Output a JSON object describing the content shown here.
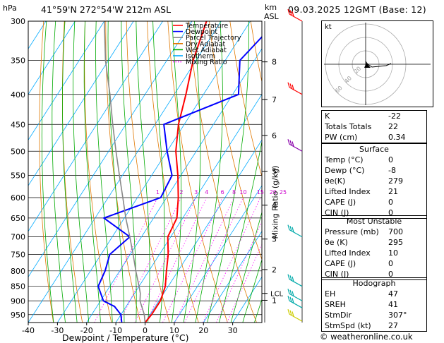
{
  "header": {
    "hpa_label": "hPa",
    "location": "41°59'N  272°54'W  212m  ASL",
    "km_label": "km",
    "asl_label": "ASL",
    "datetime": "09.03.2025  12GMT  (Base: 12)"
  },
  "legend": {
    "items": [
      {
        "label": "Temperature",
        "color": "#ff0000",
        "style": "solid"
      },
      {
        "label": "Dewpoint",
        "color": "#0000ff",
        "style": "solid"
      },
      {
        "label": "Parcel Trajectory",
        "color": "#888888",
        "style": "solid"
      },
      {
        "label": "Dry Adiabat",
        "color": "#e07800",
        "style": "solid"
      },
      {
        "label": "Wet Adiabat",
        "color": "#00aa00",
        "style": "solid"
      },
      {
        "label": "Isotherm",
        "color": "#00aaff",
        "style": "solid"
      },
      {
        "label": "Mixing Ratio",
        "color": "#ff00ff",
        "style": "dotted"
      }
    ]
  },
  "axes": {
    "xlabel": "Dewpoint / Temperature (°C)",
    "y2label": "Mixing Ratio (g/kg)",
    "lcl_label": "LCL"
  },
  "chart_data": {
    "type": "line",
    "x_range": [
      -40,
      40
    ],
    "x_ticks": [
      -40,
      -30,
      -20,
      -10,
      0,
      10,
      20,
      30
    ],
    "pressure_levels": [
      300,
      350,
      400,
      450,
      500,
      550,
      600,
      650,
      700,
      750,
      800,
      850,
      900,
      950
    ],
    "pressure_range": [
      300,
      980
    ],
    "skew_deg_per_px": 0.21,
    "km_ticks": [
      {
        "km": "8",
        "p": 352
      },
      {
        "km": "7",
        "p": 408
      },
      {
        "km": "6",
        "p": 470
      },
      {
        "km": "5",
        "p": 541
      },
      {
        "km": "4",
        "p": 618
      },
      {
        "km": "3",
        "p": 706
      },
      {
        "km": "2",
        "p": 796
      },
      {
        "km": "1",
        "p": 898
      }
    ],
    "lcl_pressure": 874,
    "mixing_ratio_labels": [
      "1",
      "2",
      "3",
      "4",
      "6",
      "8",
      "10",
      "15",
      "20",
      "25"
    ],
    "mixing_ratio_values": [
      1,
      2,
      3,
      4,
      6,
      8,
      10,
      15,
      20,
      25
    ],
    "series": [
      {
        "name": "Temperature",
        "color": "#ff0000",
        "p": [
          980,
          950,
          900,
          850,
          800,
          750,
          700,
          650,
          600,
          550,
          500,
          450,
          400,
          350,
          300
        ],
        "t": [
          0,
          0.5,
          0.5,
          -1,
          -4,
          -7,
          -11,
          -12,
          -16,
          -21,
          -27,
          -32,
          -36,
          -41,
          -45
        ]
      },
      {
        "name": "Dewpoint",
        "color": "#0000ff",
        "p": [
          980,
          950,
          920,
          900,
          850,
          800,
          750,
          700,
          650,
          600,
          550,
          500,
          450,
          400,
          350,
          300
        ],
        "t": [
          -8,
          -10,
          -14,
          -19,
          -24,
          -25,
          -27,
          -24,
          -37,
          -22,
          -23,
          -30,
          -37,
          -18,
          -25,
          -21
        ]
      },
      {
        "name": "Parcel Trajectory",
        "color": "#888888",
        "p": [
          980,
          950,
          900,
          874,
          850,
          800,
          750,
          700,
          650,
          600,
          550,
          500,
          450,
          400,
          350,
          300
        ],
        "t": [
          0,
          -2,
          -6.5,
          -8,
          -10,
          -14.5,
          -19,
          -24,
          -29.5,
          -35,
          -41,
          -47.5,
          -54.5,
          -62,
          -71,
          -80
        ]
      }
    ],
    "wind_barbs": [
      {
        "p": 300,
        "color": "#ff0000"
      },
      {
        "p": 400,
        "color": "#ff0000"
      },
      {
        "p": 500,
        "color": "#8800aa"
      },
      {
        "p": 700,
        "color": "#00aaaa"
      },
      {
        "p": 850,
        "color": "#00aaaa"
      },
      {
        "p": 900,
        "color": "#00aaaa"
      },
      {
        "p": 925,
        "color": "#00aaaa"
      },
      {
        "p": 975,
        "color": "#cccc00"
      }
    ]
  },
  "hodograph": {
    "unit_label": "kt",
    "ring_labels": [
      "20",
      "40",
      "60"
    ]
  },
  "indices": [
    {
      "label": "K",
      "value": "-22"
    },
    {
      "label": "Totals Totals",
      "value": "22"
    },
    {
      "label": "PW (cm)",
      "value": "0.34"
    }
  ],
  "surface": {
    "title": "Surface",
    "rows": [
      {
        "label": "Temp (°C)",
        "value": "0"
      },
      {
        "label": "Dewp (°C)",
        "value": "-8"
      },
      {
        "label": "θe(K)",
        "value": "279"
      },
      {
        "label": "Lifted Index",
        "value": "21"
      },
      {
        "label": "CAPE (J)",
        "value": "0"
      },
      {
        "label": "CIN (J)",
        "value": "0"
      }
    ]
  },
  "most_unstable": {
    "title": "Most Unstable",
    "rows": [
      {
        "label": "Pressure (mb)",
        "value": "700"
      },
      {
        "label": "θe (K)",
        "value": "295"
      },
      {
        "label": "Lifted Index",
        "value": "10"
      },
      {
        "label": "CAPE (J)",
        "value": "0"
      },
      {
        "label": "CIN (J)",
        "value": "0"
      }
    ]
  },
  "hodograph_table": {
    "title": "Hodograph",
    "rows": [
      {
        "label": "EH",
        "value": "47"
      },
      {
        "label": "SREH",
        "value": "41"
      },
      {
        "label": "StmDir",
        "value": "307°"
      },
      {
        "label": "StmSpd (kt)",
        "value": "27"
      }
    ]
  },
  "footer": "© weatheronline.co.uk"
}
